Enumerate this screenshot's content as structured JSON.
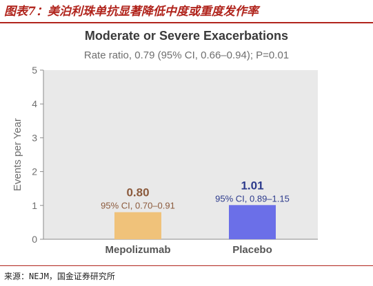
{
  "caption": {
    "title": "图表7：美泊利珠单抗显著降低中度或重度发作率",
    "source": "来源：NEJM，国金证券研究所"
  },
  "colors": {
    "caption_red": "#b0231b",
    "plot_bg": "#e9e9e9",
    "axis": "#8a8a8a",
    "bar_mepolizumab": "#f0c27a",
    "bar_placebo": "#6b6fe8",
    "label_mepolizumab": "#8b5a3c",
    "label_placebo": "#2c3a8c"
  },
  "chart_data": {
    "type": "bar",
    "title": "Moderate or Severe Exacerbations",
    "subtitle": "Rate ratio, 0.79 (95% CI, 0.66–0.94); P=0.01",
    "ylabel": "Events per Year",
    "xlabel": "",
    "ylim": [
      0,
      5
    ],
    "yticks": [
      0,
      1,
      2,
      3,
      4,
      5
    ],
    "grid": false,
    "categories": [
      "Mepolizumab",
      "Placebo"
    ],
    "values": [
      0.8,
      1.01
    ],
    "value_labels": [
      "0.80",
      "1.01"
    ],
    "ci_labels": [
      "95% CI, 0.70–0.91",
      "95% CI, 0.89–1.15"
    ]
  }
}
